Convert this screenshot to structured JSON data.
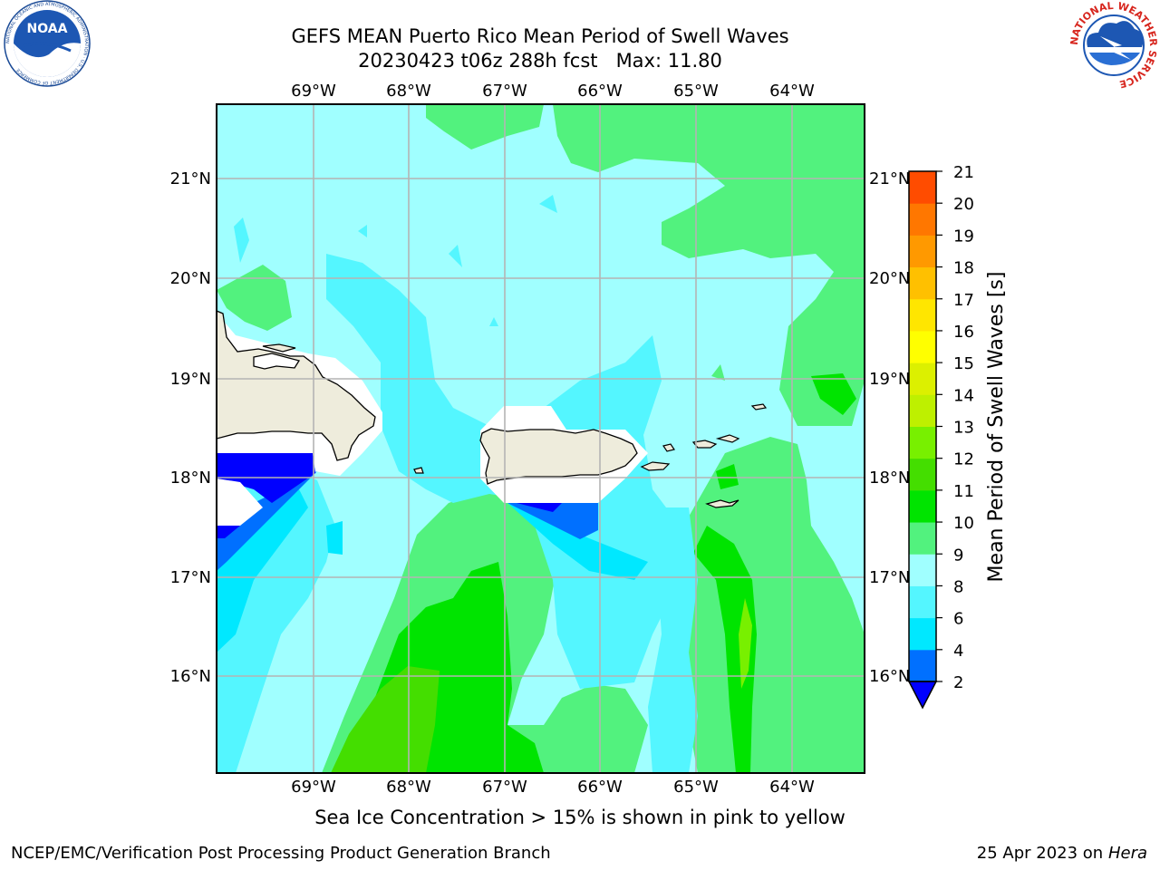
{
  "header": {
    "title_line1": "GEFS MEAN Puerto Rico Mean Period of Swell Waves",
    "title_line2": "20230423 t06z 288h fcst",
    "max_label": "Max: 11.80"
  },
  "logos": {
    "noaa": {
      "text": "NOAA",
      "ring_text": "NATIONAL OCEANIC AND ATMOSPHERIC ADMINISTRATION · U.S. DEPARTMENT OF COMMERCE",
      "icon": "noaa-logo"
    },
    "nws": {
      "ring_text": "NATIONAL WEATHER SERVICE",
      "icon": "nws-logo"
    }
  },
  "map": {
    "lon_labels": [
      "69°W",
      "68°W",
      "67°W",
      "66°W",
      "65°W",
      "64°W"
    ],
    "lat_labels": [
      "21°N",
      "20°N",
      "19°N",
      "18°N",
      "17°N",
      "16°N"
    ],
    "colors": {
      "land": "#eeecdc",
      "coastline": "#000000",
      "grid": "#b4b4b4"
    }
  },
  "colorbar": {
    "label": "Mean Period of Swell Waves [s]",
    "ticks": [
      "21",
      "20",
      "19",
      "18",
      "17",
      "16",
      "15",
      "14",
      "13",
      "12",
      "11",
      "10",
      "9",
      "8",
      "6",
      "4",
      "2"
    ],
    "colors": [
      "#0000ff",
      "#0070ff",
      "#00e8ff",
      "#54f6ff",
      "#a0ffff",
      "#52f27e",
      "#00e400",
      "#44de00",
      "#78f000",
      "#bef000",
      "#dcf000",
      "#ffff00",
      "#ffe600",
      "#ffc000",
      "#ff9900",
      "#ff7700",
      "#ff4c00",
      "#ff2200",
      "#ff0000"
    ]
  },
  "chart_data": {
    "type": "heatmap",
    "title": "GEFS MEAN Puerto Rico Mean Period of Swell Waves",
    "variable": "Mean Period of Swell Waves [s]",
    "max_value": 11.8,
    "lon_range": [
      -70.0,
      -63.25
    ],
    "lat_range": [
      15.0,
      21.75
    ],
    "color_levels": [
      2,
      4,
      6,
      8,
      9,
      10,
      11,
      12,
      13,
      14,
      15,
      16,
      17,
      18,
      19,
      20,
      21
    ]
  },
  "footer": {
    "sea_ice_note": "Sea Ice Concentration > 15% is shown in pink to yellow",
    "credit": "NCEP/EMC/Verification Post Processing Product Generation Branch",
    "date": "25 Apr 2023 on ",
    "machine": "Hera"
  }
}
